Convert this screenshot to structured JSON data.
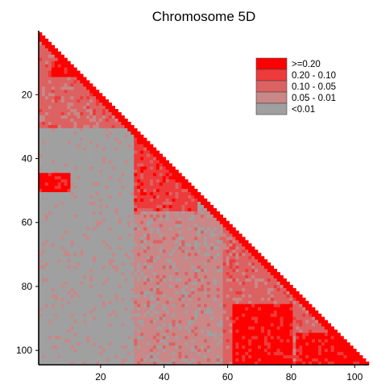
{
  "chart_data": {
    "type": "heatmap",
    "title": "Chromosome 5D",
    "xlabel": "",
    "ylabel": "",
    "n": 104,
    "xlim": [
      0,
      104
    ],
    "ylim": [
      104,
      0
    ],
    "x_ticks": [
      20,
      40,
      60,
      80,
      100
    ],
    "y_ticks": [
      20,
      40,
      60,
      80,
      100
    ],
    "legend": {
      "placement": "top-right",
      "items": [
        {
          "label": ">=0.20",
          "color": "#ff0000"
        },
        {
          "label": "0.20 - 0.10",
          "color": "#ed3a3a"
        },
        {
          "label": "0.10 - 0.05",
          "color": "#dc6262"
        },
        {
          "label": "0.05 - 0.01",
          "color": "#c98787"
        },
        {
          "label": "<0.01",
          "color": "#a0a0a0"
        }
      ]
    },
    "grid": false,
    "shape": "lower-triangle",
    "band_classes": {
      "description": "approximate r2 class per block region, lower triangle",
      "near_diagonal_class": 0,
      "default_class": 4
    },
    "regions": [
      {
        "rows": [
          1,
          30
        ],
        "cols": [
          1,
          30
        ],
        "class": 2
      },
      {
        "rows": [
          10,
          14
        ],
        "cols": [
          5,
          20
        ],
        "class": 0
      },
      {
        "rows": [
          31,
          56
        ],
        "cols": [
          1,
          30
        ],
        "class": 4
      },
      {
        "rows": [
          31,
          56
        ],
        "cols": [
          31,
          50
        ],
        "class": 1
      },
      {
        "rows": [
          45,
          50
        ],
        "cols": [
          1,
          10
        ],
        "class": 0
      },
      {
        "rows": [
          57,
          104
        ],
        "cols": [
          1,
          30
        ],
        "class": 4
      },
      {
        "rows": [
          57,
          104
        ],
        "cols": [
          31,
          58
        ],
        "class": 3
      },
      {
        "rows": [
          57,
          104
        ],
        "cols": [
          59,
          104
        ],
        "class": 2
      },
      {
        "rows": [
          86,
          104
        ],
        "cols": [
          62,
          80
        ],
        "class": 0
      },
      {
        "rows": [
          95,
          104
        ],
        "cols": [
          82,
          104
        ],
        "class": 0
      }
    ]
  }
}
